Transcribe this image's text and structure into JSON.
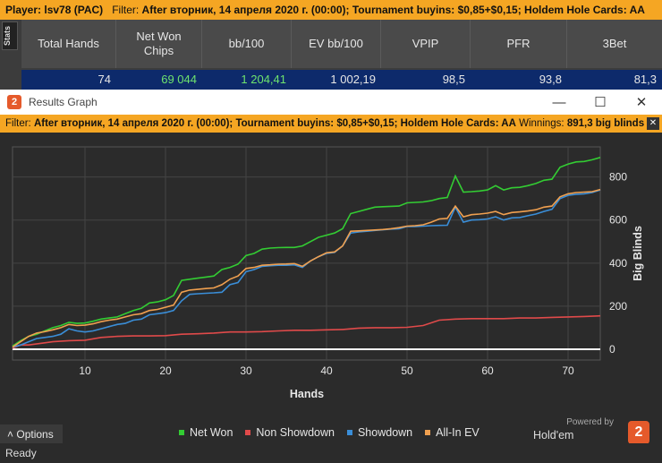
{
  "topbar": {
    "player_label": "Player:",
    "player_value": "lsv78 (PAC)",
    "filter_label": "Filter:",
    "filter_value": "After вторник, 14 апреля 2020 г. (00:00); Tournament buyins: $0,85+$0,15; Holdem Hole Cards: AA"
  },
  "stats_tab": "Stats",
  "stats": {
    "columns": [
      "Total Hands",
      "Net Won Chips",
      "bb/100",
      "EV bb/100",
      "VPIP",
      "PFR",
      "3Bet"
    ],
    "values": [
      "74",
      "69 044",
      "1 204,41",
      "1 002,19",
      "98,5",
      "93,8",
      "81,3"
    ]
  },
  "window": {
    "title": "Results Graph",
    "icon_text": "2",
    "minimize": "—",
    "maximize": "☐",
    "close": "✕"
  },
  "filterbar": {
    "filter_label": "Filter:",
    "filter_value": "After вторник, 14 апреля 2020 г. (00:00); Tournament buyins: $0,85+$0,15; Holdem Hole Cards: AA",
    "winnings_label": "Winnings:",
    "winnings_value": "891,3 big blinds",
    "close": "✕"
  },
  "options_label": "Options",
  "status_text": "Ready",
  "brand": {
    "powered_by": "Powered by",
    "name": "Hold'em Manager",
    "logo": "2"
  },
  "colors": {
    "net_won": "#33cc33",
    "non_showdown": "#e04a4a",
    "showdown": "#3a8ed8",
    "allin_ev": "#f0a050",
    "accent": "#f5a623"
  },
  "chart_data": {
    "type": "line",
    "xlabel": "Hands",
    "ylabel": "Big Blinds",
    "xlim": [
      1,
      74
    ],
    "ylim": [
      -50,
      940
    ],
    "x_ticks": [
      10,
      20,
      30,
      40,
      50,
      60,
      70
    ],
    "y_ticks": [
      0,
      200,
      400,
      600,
      800
    ],
    "legend_placement": "bottom",
    "series": [
      {
        "name": "Net Won",
        "color": "#33cc33",
        "points": [
          [
            1,
            15
          ],
          [
            2,
            40
          ],
          [
            3,
            60
          ],
          [
            4,
            70
          ],
          [
            5,
            85
          ],
          [
            6,
            100
          ],
          [
            7,
            110
          ],
          [
            8,
            125
          ],
          [
            9,
            120
          ],
          [
            10,
            122
          ],
          [
            11,
            130
          ],
          [
            12,
            140
          ],
          [
            13,
            145
          ],
          [
            14,
            150
          ],
          [
            15,
            165
          ],
          [
            16,
            180
          ],
          [
            17,
            190
          ],
          [
            18,
            215
          ],
          [
            19,
            220
          ],
          [
            20,
            230
          ],
          [
            21,
            250
          ],
          [
            22,
            320
          ],
          [
            23,
            325
          ],
          [
            24,
            330
          ],
          [
            25,
            335
          ],
          [
            26,
            340
          ],
          [
            27,
            370
          ],
          [
            28,
            380
          ],
          [
            29,
            395
          ],
          [
            30,
            435
          ],
          [
            31,
            445
          ],
          [
            32,
            465
          ],
          [
            33,
            470
          ],
          [
            34,
            472
          ],
          [
            35,
            473
          ],
          [
            36,
            473
          ],
          [
            37,
            480
          ],
          [
            38,
            500
          ],
          [
            39,
            520
          ],
          [
            40,
            530
          ],
          [
            41,
            540
          ],
          [
            42,
            560
          ],
          [
            43,
            630
          ],
          [
            44,
            640
          ],
          [
            45,
            650
          ],
          [
            46,
            660
          ],
          [
            47,
            662
          ],
          [
            48,
            664
          ],
          [
            49,
            665
          ],
          [
            50,
            680
          ],
          [
            51,
            682
          ],
          [
            52,
            684
          ],
          [
            53,
            690
          ],
          [
            54,
            700
          ],
          [
            55,
            705
          ],
          [
            56,
            805
          ],
          [
            57,
            730
          ],
          [
            58,
            732
          ],
          [
            59,
            735
          ],
          [
            60,
            740
          ],
          [
            61,
            760
          ],
          [
            62,
            740
          ],
          [
            63,
            750
          ],
          [
            64,
            752
          ],
          [
            65,
            760
          ],
          [
            66,
            770
          ],
          [
            67,
            785
          ],
          [
            68,
            790
          ],
          [
            69,
            845
          ],
          [
            70,
            860
          ],
          [
            71,
            870
          ],
          [
            72,
            872
          ],
          [
            73,
            880
          ],
          [
            74,
            891
          ]
        ]
      },
      {
        "name": "Non Showdown",
        "color": "#e04a4a",
        "points": [
          [
            1,
            5
          ],
          [
            2,
            20
          ],
          [
            3,
            20
          ],
          [
            5,
            30
          ],
          [
            6,
            35
          ],
          [
            8,
            40
          ],
          [
            10,
            42
          ],
          [
            12,
            55
          ],
          [
            14,
            60
          ],
          [
            16,
            62
          ],
          [
            18,
            62
          ],
          [
            20,
            63
          ],
          [
            22,
            70
          ],
          [
            24,
            72
          ],
          [
            26,
            75
          ],
          [
            28,
            80
          ],
          [
            30,
            80
          ],
          [
            32,
            82
          ],
          [
            34,
            85
          ],
          [
            36,
            88
          ],
          [
            38,
            88
          ],
          [
            40,
            90
          ],
          [
            42,
            92
          ],
          [
            44,
            98
          ],
          [
            46,
            100
          ],
          [
            48,
            100
          ],
          [
            50,
            102
          ],
          [
            52,
            110
          ],
          [
            54,
            135
          ],
          [
            56,
            140
          ],
          [
            58,
            142
          ],
          [
            60,
            142
          ],
          [
            62,
            142
          ],
          [
            64,
            145
          ],
          [
            66,
            145
          ],
          [
            68,
            148
          ],
          [
            70,
            150
          ],
          [
            72,
            152
          ],
          [
            74,
            155
          ]
        ]
      },
      {
        "name": "Showdown",
        "color": "#3a8ed8",
        "points": [
          [
            1,
            10
          ],
          [
            2,
            20
          ],
          [
            3,
            35
          ],
          [
            4,
            50
          ],
          [
            5,
            55
          ],
          [
            6,
            60
          ],
          [
            7,
            70
          ],
          [
            8,
            95
          ],
          [
            9,
            85
          ],
          [
            10,
            80
          ],
          [
            11,
            85
          ],
          [
            12,
            95
          ],
          [
            13,
            105
          ],
          [
            14,
            115
          ],
          [
            15,
            120
          ],
          [
            16,
            135
          ],
          [
            17,
            140
          ],
          [
            18,
            160
          ],
          [
            19,
            165
          ],
          [
            20,
            170
          ],
          [
            21,
            180
          ],
          [
            22,
            225
          ],
          [
            23,
            255
          ],
          [
            24,
            258
          ],
          [
            25,
            260
          ],
          [
            26,
            262
          ],
          [
            27,
            265
          ],
          [
            28,
            300
          ],
          [
            29,
            310
          ],
          [
            30,
            360
          ],
          [
            31,
            370
          ],
          [
            32,
            385
          ],
          [
            33,
            388
          ],
          [
            34,
            390
          ],
          [
            35,
            390
          ],
          [
            36,
            392
          ],
          [
            37,
            380
          ],
          [
            38,
            410
          ],
          [
            39,
            430
          ],
          [
            40,
            445
          ],
          [
            41,
            450
          ],
          [
            42,
            480
          ],
          [
            43,
            540
          ],
          [
            44,
            545
          ],
          [
            45,
            548
          ],
          [
            46,
            552
          ],
          [
            47,
            555
          ],
          [
            48,
            558
          ],
          [
            49,
            560
          ],
          [
            50,
            570
          ],
          [
            51,
            570
          ],
          [
            52,
            572
          ],
          [
            53,
            574
          ],
          [
            54,
            575
          ],
          [
            55,
            576
          ],
          [
            56,
            660
          ],
          [
            57,
            590
          ],
          [
            58,
            600
          ],
          [
            59,
            602
          ],
          [
            60,
            605
          ],
          [
            61,
            615
          ],
          [
            62,
            600
          ],
          [
            63,
            610
          ],
          [
            64,
            612
          ],
          [
            65,
            620
          ],
          [
            66,
            628
          ],
          [
            67,
            640
          ],
          [
            68,
            650
          ],
          [
            69,
            700
          ],
          [
            70,
            715
          ],
          [
            71,
            720
          ],
          [
            72,
            722
          ],
          [
            73,
            728
          ],
          [
            74,
            740
          ]
        ]
      },
      {
        "name": "All-In EV",
        "color": "#f0a050",
        "points": [
          [
            1,
            10
          ],
          [
            2,
            35
          ],
          [
            3,
            60
          ],
          [
            4,
            75
          ],
          [
            5,
            82
          ],
          [
            6,
            90
          ],
          [
            7,
            100
          ],
          [
            8,
            115
          ],
          [
            9,
            110
          ],
          [
            10,
            112
          ],
          [
            11,
            118
          ],
          [
            12,
            128
          ],
          [
            13,
            135
          ],
          [
            14,
            140
          ],
          [
            15,
            150
          ],
          [
            16,
            160
          ],
          [
            17,
            165
          ],
          [
            18,
            180
          ],
          [
            19,
            185
          ],
          [
            20,
            195
          ],
          [
            21,
            205
          ],
          [
            22,
            265
          ],
          [
            23,
            275
          ],
          [
            24,
            278
          ],
          [
            25,
            282
          ],
          [
            26,
            285
          ],
          [
            27,
            300
          ],
          [
            28,
            325
          ],
          [
            29,
            340
          ],
          [
            30,
            375
          ],
          [
            31,
            380
          ],
          [
            32,
            390
          ],
          [
            33,
            392
          ],
          [
            34,
            395
          ],
          [
            35,
            396
          ],
          [
            36,
            398
          ],
          [
            37,
            385
          ],
          [
            38,
            410
          ],
          [
            39,
            430
          ],
          [
            40,
            448
          ],
          [
            41,
            452
          ],
          [
            42,
            480
          ],
          [
            43,
            548
          ],
          [
            44,
            550
          ],
          [
            45,
            552
          ],
          [
            46,
            554
          ],
          [
            47,
            556
          ],
          [
            48,
            560
          ],
          [
            49,
            565
          ],
          [
            50,
            572
          ],
          [
            51,
            574
          ],
          [
            52,
            578
          ],
          [
            53,
            590
          ],
          [
            54,
            605
          ],
          [
            55,
            608
          ],
          [
            56,
            665
          ],
          [
            57,
            615
          ],
          [
            58,
            625
          ],
          [
            59,
            628
          ],
          [
            60,
            632
          ],
          [
            61,
            640
          ],
          [
            62,
            625
          ],
          [
            63,
            635
          ],
          [
            64,
            638
          ],
          [
            65,
            642
          ],
          [
            66,
            648
          ],
          [
            67,
            660
          ],
          [
            68,
            665
          ],
          [
            69,
            708
          ],
          [
            70,
            722
          ],
          [
            71,
            728
          ],
          [
            72,
            730
          ],
          [
            73,
            732
          ],
          [
            74,
            742
          ]
        ]
      }
    ]
  }
}
